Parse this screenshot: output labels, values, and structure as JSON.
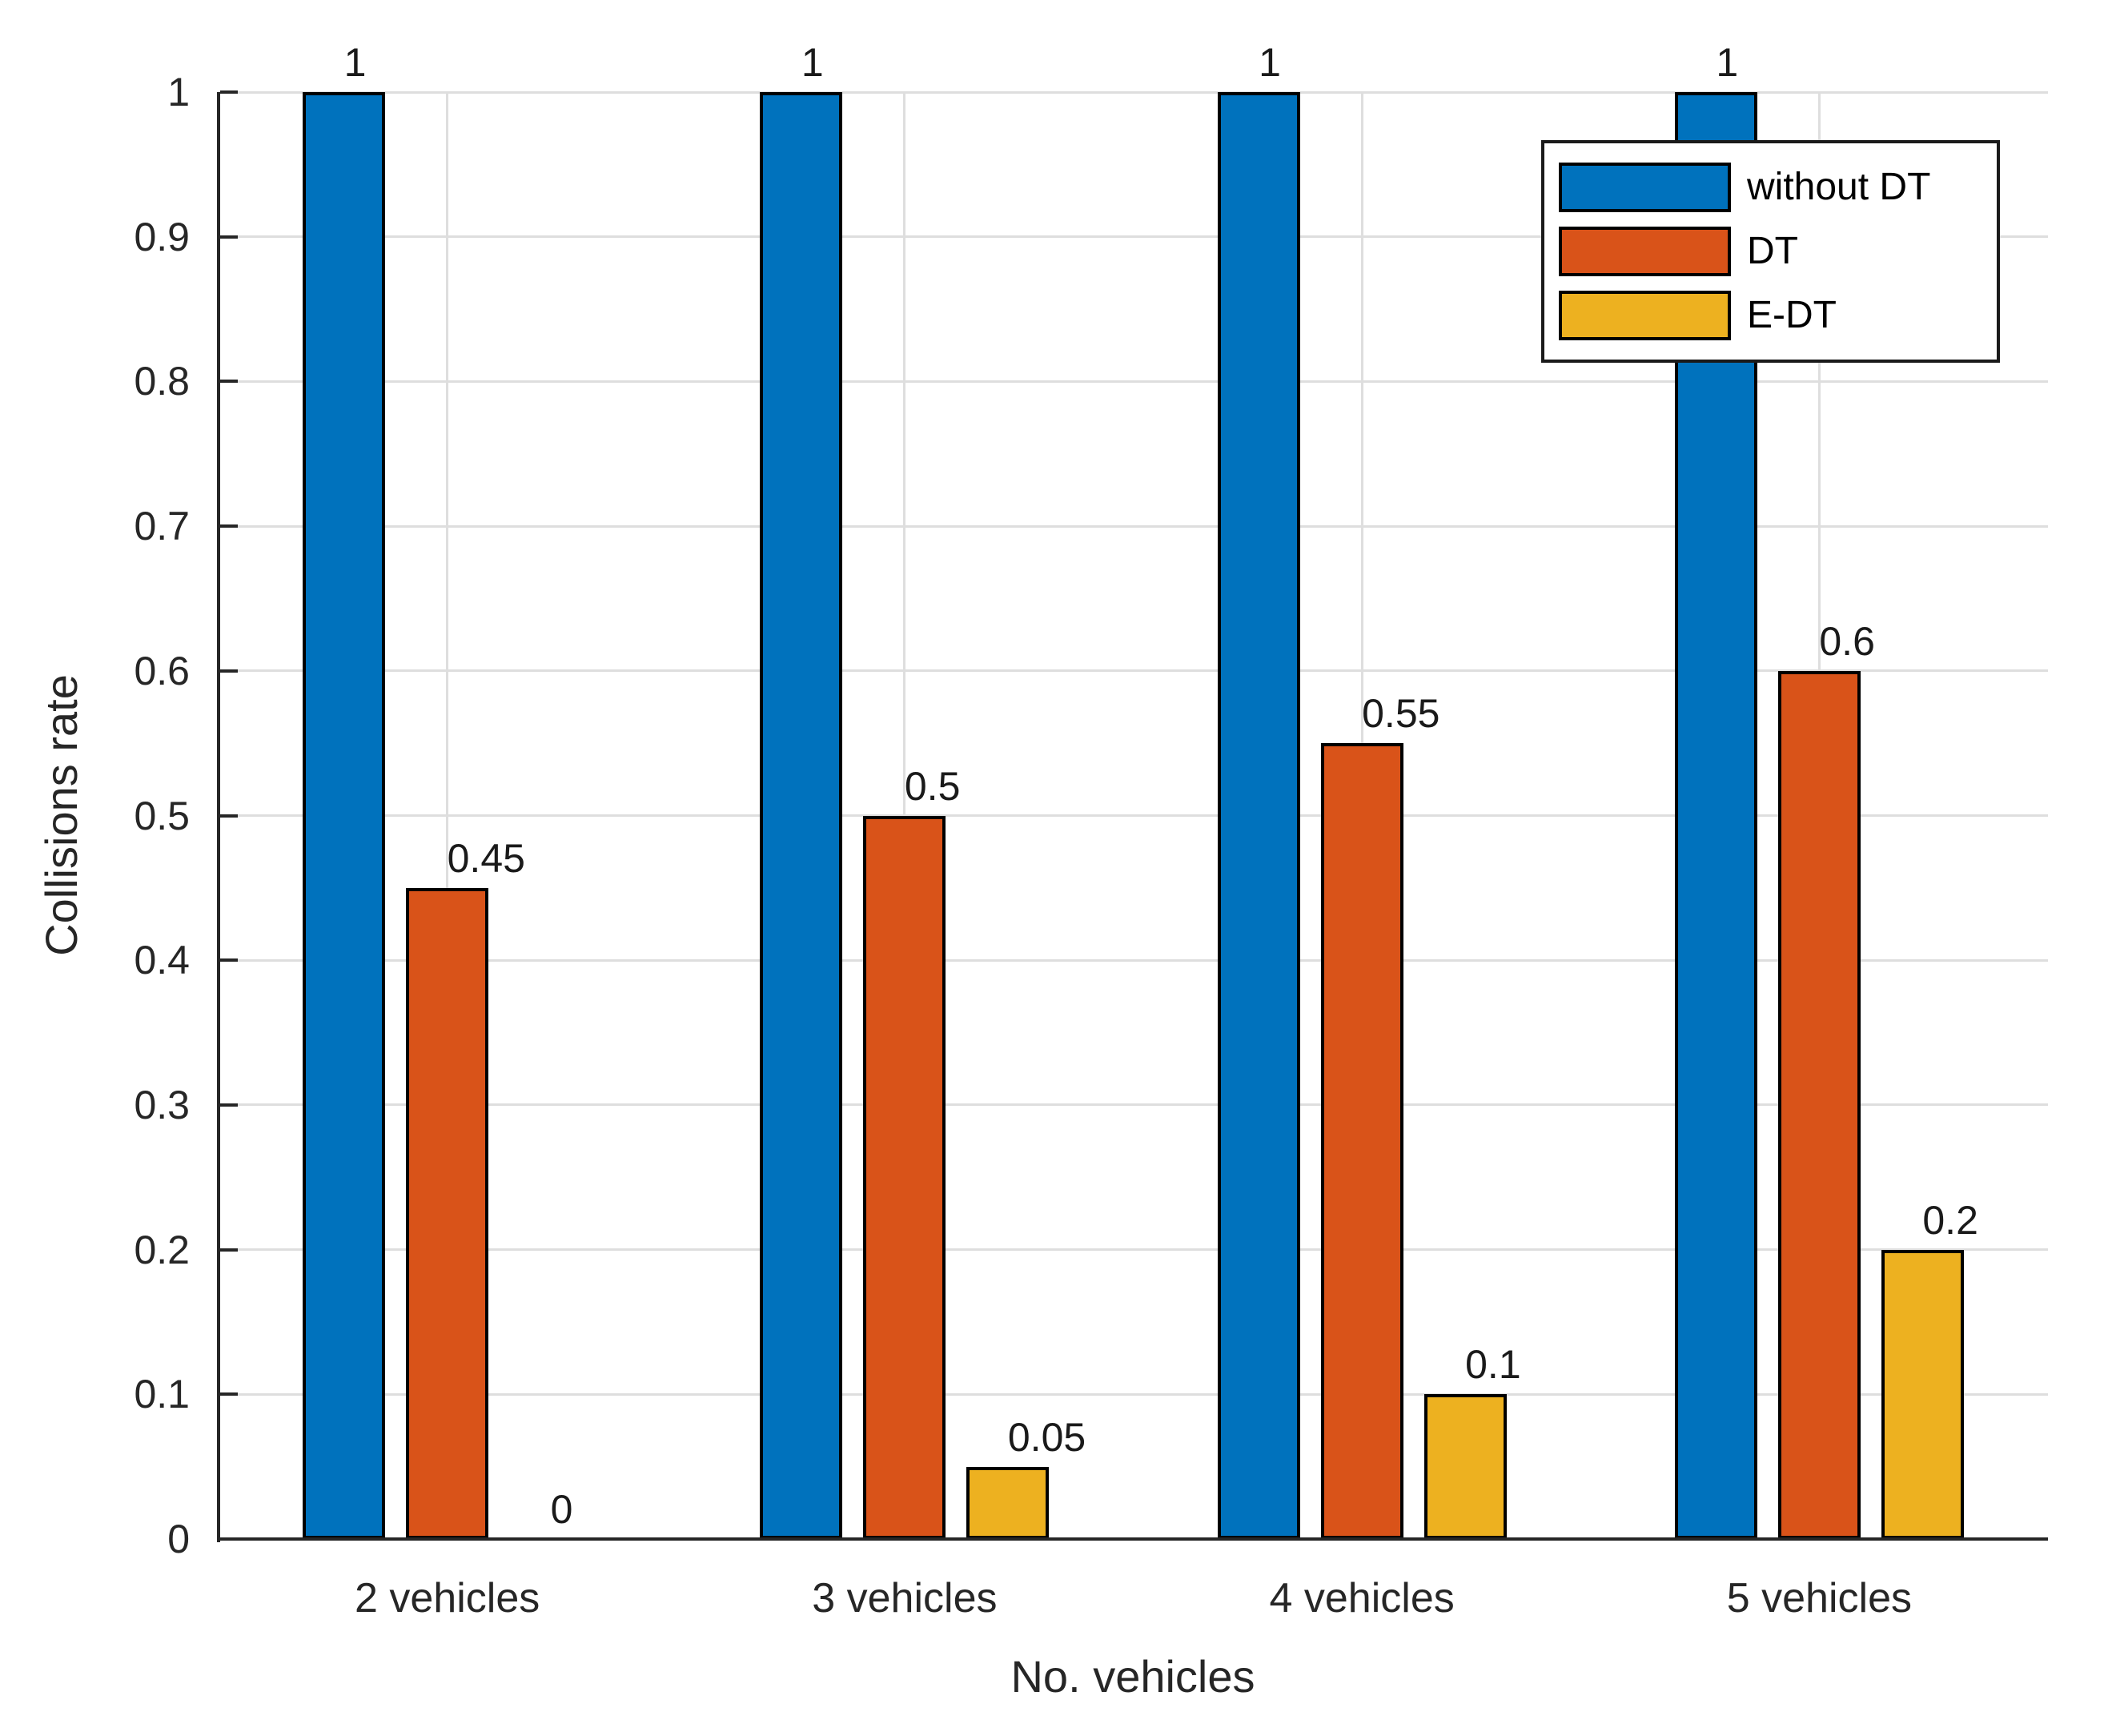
{
  "chart_data": {
    "type": "bar",
    "title": "",
    "categories": [
      "2 vehicles",
      "3 vehicles",
      "4 vehicles",
      "5 vehicles"
    ],
    "series": [
      {
        "name": "without DT",
        "color": "#0072BD",
        "values": [
          1,
          1,
          1,
          1
        ],
        "labels": [
          "1",
          "1",
          "1",
          "1"
        ]
      },
      {
        "name": "DT",
        "color": "#D95319",
        "values": [
          0.45,
          0.5,
          0.55,
          0.6
        ],
        "labels": [
          "0.45",
          "0.5",
          "0.55",
          "0.6"
        ]
      },
      {
        "name": "E-DT",
        "color": "#EDB120",
        "values": [
          0,
          0.05,
          0.1,
          0.2
        ],
        "labels": [
          "0",
          "0.05",
          "0.1",
          "0.2"
        ]
      }
    ],
    "xlabel": "No. vehicles",
    "ylabel": "Collisions rate",
    "ylim": [
      0,
      1
    ],
    "ytick_labels": [
      "0",
      "0.1",
      "0.2",
      "0.3",
      "0.4",
      "0.5",
      "0.6",
      "0.7",
      "0.8",
      "0.9",
      "1"
    ],
    "grid": "both",
    "legend": {
      "position": "top-right",
      "entries": [
        "without DT",
        "DT",
        "E-DT"
      ]
    },
    "colors": {
      "axis": "#262626",
      "grid": "#dedede",
      "bar_edge": "#000000",
      "background": "#ffffff"
    }
  }
}
